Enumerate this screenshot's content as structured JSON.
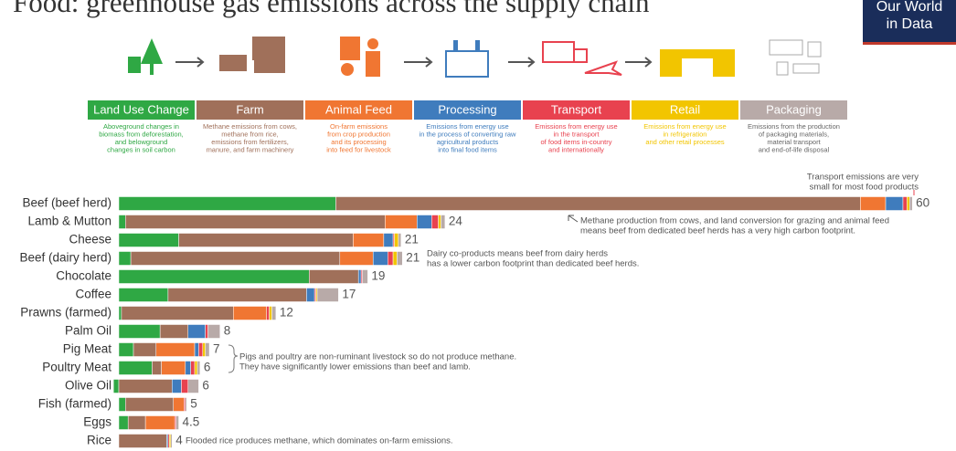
{
  "chart_data": {
    "type": "stacked-bar",
    "title": "Food: greenhouse gas emissions across the supply chain",
    "logo": [
      "Our World",
      "in Data"
    ],
    "categories": [
      "Beef (beef herd)",
      "Lamb & Mutton",
      "Cheese",
      "Beef (dairy herd)",
      "Chocolate",
      "Coffee",
      "Prawns (farmed)",
      "Palm Oil",
      "Pig Meat",
      "Poultry Meat",
      "Olive Oil",
      "Fish (farmed)",
      "Eggs",
      "Rice"
    ],
    "series": [
      {
        "name": "Land Use Change",
        "color": "#2fa844",
        "description": [
          "Aboveground changes in",
          "biomass from deforestation,",
          "and belowground",
          "changes in soil carbon"
        ],
        "values": [
          16.3,
          0.5,
          4.5,
          0.9,
          14.3,
          3.7,
          0.2,
          3.1,
          1.1,
          2.5,
          -0.4,
          0.5,
          0.7,
          0
        ]
      },
      {
        "name": "Farm",
        "color": "#a0705a",
        "description": [
          "Methane emissions from cows,",
          "methane from rice,",
          "emissions from fertilizers,",
          "manure, and farm machinery"
        ],
        "values": [
          39.4,
          19.5,
          13.1,
          15.7,
          3.7,
          10.4,
          8.4,
          2.1,
          1.7,
          0.7,
          4.0,
          3.6,
          1.3,
          3.6
        ]
      },
      {
        "name": "Animal Feed",
        "color": "#f07632",
        "description": [
          "On-farm emissions",
          "from crop production",
          "and its processing",
          "into feed for livestock"
        ],
        "values": [
          1.9,
          2.4,
          2.3,
          2.5,
          0,
          0,
          2.5,
          0,
          2.9,
          1.8,
          0,
          0.8,
          2.2,
          0
        ]
      },
      {
        "name": "Processing",
        "color": "#3f7cbd",
        "description": [
          "Emissions from energy use",
          "in the process of converting raw",
          "agricultural products",
          "into final food items"
        ],
        "values": [
          1.3,
          1.1,
          0.7,
          1.1,
          0.2,
          0.6,
          0,
          1.3,
          0.3,
          0.4,
          0.7,
          0,
          0,
          0.1
        ]
      },
      {
        "name": "Transport",
        "color": "#e8424f",
        "description": [
          "Emissions from energy use",
          "in the transport",
          "of food items in-country",
          "and internationally"
        ],
        "values": [
          0.3,
          0.5,
          0.1,
          0.4,
          0.1,
          0.1,
          0.2,
          0.2,
          0.3,
          0.3,
          0.5,
          0.1,
          0.1,
          0.1
        ]
      },
      {
        "name": "Retail",
        "color": "#f2c500",
        "description": [
          "Emissions from energy use",
          "in refrigeration",
          "and other retail processes"
        ],
        "values": [
          0.2,
          0.2,
          0.3,
          0.3,
          0,
          0.1,
          0.2,
          0,
          0.2,
          0.2,
          0,
          0,
          0,
          0.1
        ]
      },
      {
        "name": "Packaging",
        "color": "#b8aaa8",
        "description": [
          "Emissions from the production",
          "of packaging materials,",
          "material transport",
          "and end-of-life disposal"
        ],
        "values": [
          0.2,
          0.3,
          0.2,
          0.4,
          0.4,
          1.6,
          0.3,
          0.9,
          0.3,
          0.2,
          0.8,
          0.1,
          0.2,
          0.1
        ]
      }
    ],
    "totals": [
      60,
      24,
      21,
      21,
      19,
      17,
      12,
      8,
      7,
      6,
      6,
      5,
      4.5,
      4
    ],
    "xlim": [
      0,
      60
    ],
    "annotations": [
      {
        "lines": [
          "Transport emissions are very",
          "small for most food products"
        ],
        "color": "#e8424f"
      },
      {
        "lines": [
          "Methane production from cows, and land conversion for grazing and animal feed",
          "means beef from dedicated beef herds has a very high carbon footprint."
        ],
        "color": "#555555"
      },
      {
        "lines": [
          "Dairy co-products means beef from dairy herds",
          "has a lower carbon footprint than dedicated beef herds."
        ],
        "color": "#555555"
      },
      {
        "lines": [
          "Pigs and poultry are non-ruminant livestock so do not produce methane.",
          "They have significantly lower emissions than beef and lamb."
        ],
        "color": "#555555"
      },
      {
        "lines": [
          "Flooded rice produces methane, which dominates on-farm emissions."
        ],
        "color": "#555555"
      }
    ]
  }
}
